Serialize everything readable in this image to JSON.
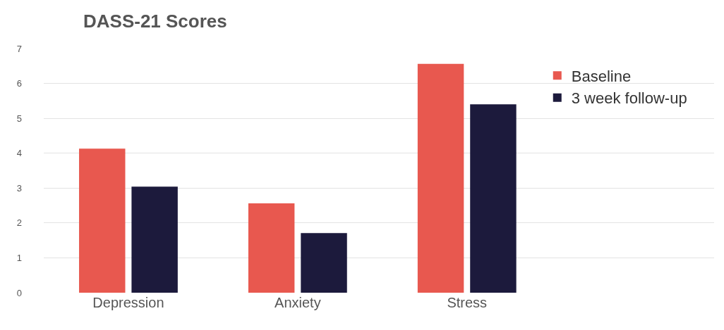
{
  "chart_data": {
    "type": "bar",
    "title": "DASS-21 Scores",
    "categories": [
      "Depression",
      "Anxiety",
      "Stress"
    ],
    "series": [
      {
        "name": "Baseline",
        "color": "#e8584f",
        "values": [
          4.13,
          2.56,
          6.56
        ]
      },
      {
        "name": "3 week follow-up",
        "color": "#1c1a3c",
        "values": [
          3.04,
          1.71,
          5.4
        ]
      }
    ],
    "ylim": [
      0,
      7
    ],
    "yticks": [
      0,
      1,
      2,
      3,
      4,
      5,
      6,
      7
    ],
    "grid": "y",
    "legend": "top right"
  }
}
